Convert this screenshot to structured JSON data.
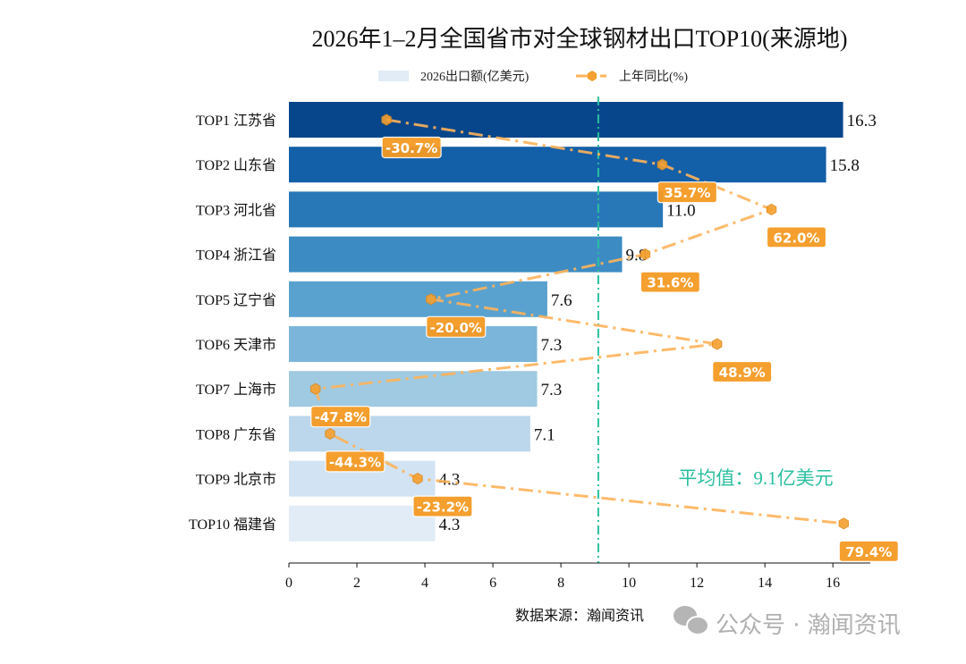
{
  "chart_data": {
    "type": "bar",
    "orientation": "horizontal",
    "title": "2026年1–2月全国省市对全球钢材出口TOP10(来源地)",
    "categories": [
      "TOP1 江苏省",
      "TOP2 山东省",
      "TOP3 河北省",
      "TOP4 浙江省",
      "TOP5 辽宁省",
      "TOP6 天津市",
      "TOP7 上海市",
      "TOP8 广东省",
      "TOP9 北京市",
      "TOP10 福建省"
    ],
    "series": [
      {
        "name": "2026出口额(亿美元)",
        "type": "bar",
        "values": [
          16.3,
          15.8,
          11.0,
          9.8,
          7.6,
          7.3,
          7.3,
          7.1,
          4.3,
          4.3
        ],
        "value_labels": [
          "16.3",
          "15.8",
          "11.0",
          "9.8",
          "7.6",
          "7.3",
          "7.3",
          "7.1",
          "4.3",
          "4.3"
        ]
      },
      {
        "name": "上年同比(%)",
        "type": "line",
        "axis": "secondary-x (hidden)",
        "values": [
          -30.7,
          35.7,
          62.0,
          31.6,
          -20.0,
          48.9,
          -47.8,
          -44.3,
          -23.2,
          79.4
        ],
        "value_labels": [
          "-30.7%",
          "35.7%",
          "62.0%",
          "31.6%",
          "-20.0%",
          "48.9%",
          "-47.8%",
          "-44.3%",
          "-23.2%",
          "79.4%"
        ]
      }
    ],
    "xlim": [
      0,
      17.1
    ],
    "secondary_xlim": [
      -54.2,
      85.8
    ],
    "xticks": [
      "0",
      "2",
      "4",
      "6",
      "8",
      "10",
      "12",
      "14",
      "16"
    ],
    "average": {
      "value": 9.1,
      "label": "平均值：9.1亿美元"
    },
    "legend_position": "top-center",
    "grid": false,
    "colors": {
      "bars": [
        "#08468b",
        "#135fa8",
        "#2878b8",
        "#3c8cc3",
        "#59a2cf",
        "#7bb5da",
        "#9fcae1",
        "#bcd7eb",
        "#d2e3f3",
        "#e1ecf7"
      ],
      "line": "#fdb35a",
      "marker": "#f5a030",
      "label_box": "#f59a23",
      "average_line": "#2bbfa0"
    }
  },
  "source": "数据来源：瀚闻资讯",
  "watermark": "公众号 · 瀚闻资讯"
}
